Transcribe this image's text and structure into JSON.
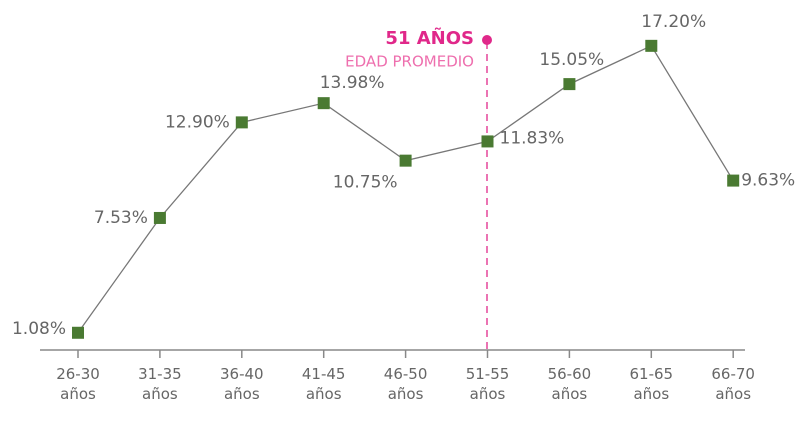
{
  "chart_data": {
    "type": "line",
    "categories": [
      "26-30 años",
      "31-35 años",
      "36-40 años",
      "41-45 años",
      "46-50 años",
      "51-55 años",
      "56-60 años",
      "61-65 años",
      "66-70 años"
    ],
    "series": [
      {
        "color": "#4a7a32",
        "values": [
          1.08,
          7.53,
          12.9,
          13.98,
          10.75,
          11.83,
          15.05,
          17.2,
          9.63
        ],
        "value_labels": [
          "1.08%",
          "7.53%",
          "12.90%",
          "13.98%",
          "10.75%",
          "11.83%",
          "15.05%",
          "17.20%",
          "9.63%"
        ]
      }
    ],
    "annotation": {
      "title": "51 AÑOS",
      "subtitle": "EDAD PROMEDIO",
      "color": "#e0288a"
    }
  }
}
